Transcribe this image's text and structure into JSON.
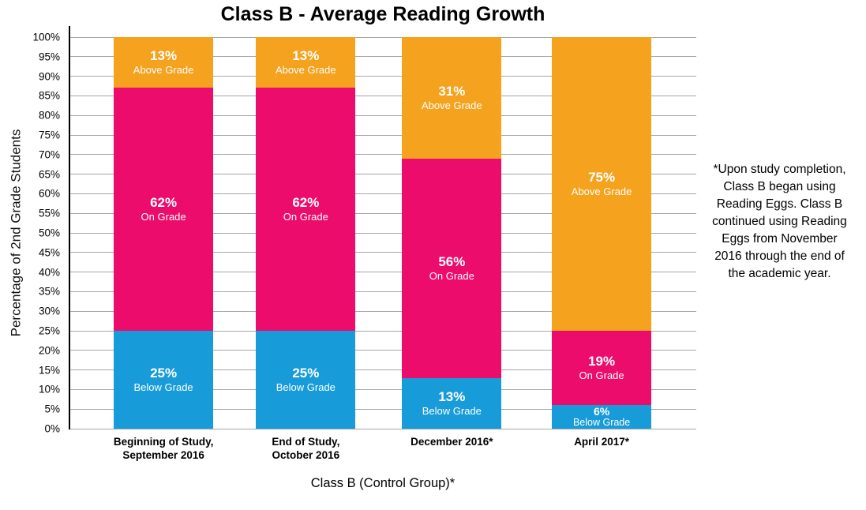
{
  "title": "Class B - Average Reading Growth",
  "chart_data": {
    "type": "bar",
    "stacked": true,
    "title": "Class B - Average Reading Growth",
    "xlabel": "Class B (Control Group)*",
    "ylabel": "Percentage of 2nd Grade Students",
    "ylim": [
      0,
      100
    ],
    "ytick_step": 5,
    "yticks": [
      "0%",
      "5%",
      "10%",
      "15%",
      "20%",
      "25%",
      "30%",
      "35%",
      "40%",
      "45%",
      "50%",
      "55%",
      "60%",
      "65%",
      "70%",
      "75%",
      "80%",
      "85%",
      "90%",
      "95%",
      "100%"
    ],
    "grid": true,
    "legend": "none",
    "segment_labels_inline": true,
    "categories": [
      "Beginning of Study, September 2016",
      "End of Study, October 2016",
      "December 2016*",
      "April 2017*"
    ],
    "category_label_lines": [
      [
        "Beginning of Study,",
        "September 2016"
      ],
      [
        "End of Study,",
        "October 2016"
      ],
      [
        "December 2016*"
      ],
      [
        "April 2017*"
      ]
    ],
    "series": [
      {
        "name": "Below Grade",
        "color": "#189CD9",
        "values": [
          25,
          25,
          13,
          6
        ]
      },
      {
        "name": "On Grade",
        "color": "#EC0C6B",
        "values": [
          62,
          62,
          56,
          19
        ]
      },
      {
        "name": "Above Grade",
        "color": "#F5A21E",
        "values": [
          13,
          13,
          31,
          75
        ]
      }
    ]
  },
  "annotation": {
    "text": "*Upon study completion, Class B began using Reading Eggs. Class B continued using Reading Eggs from November 2016 through the end of the academic year.",
    "lines": [
      "*Upon study completion,",
      "Class B began using",
      "Reading Eggs. Class B",
      "continued using Reading",
      "Eggs from November",
      "2016 through the end of",
      "the academic year."
    ]
  },
  "colors": {
    "below_grade": "#189CD9",
    "on_grade": "#EC0C6B",
    "above_grade": "#F5A21E",
    "gridline": "#A6A6A6",
    "axis_line": "#000000",
    "label_text": "#FFFFFF",
    "text": "#000000"
  }
}
